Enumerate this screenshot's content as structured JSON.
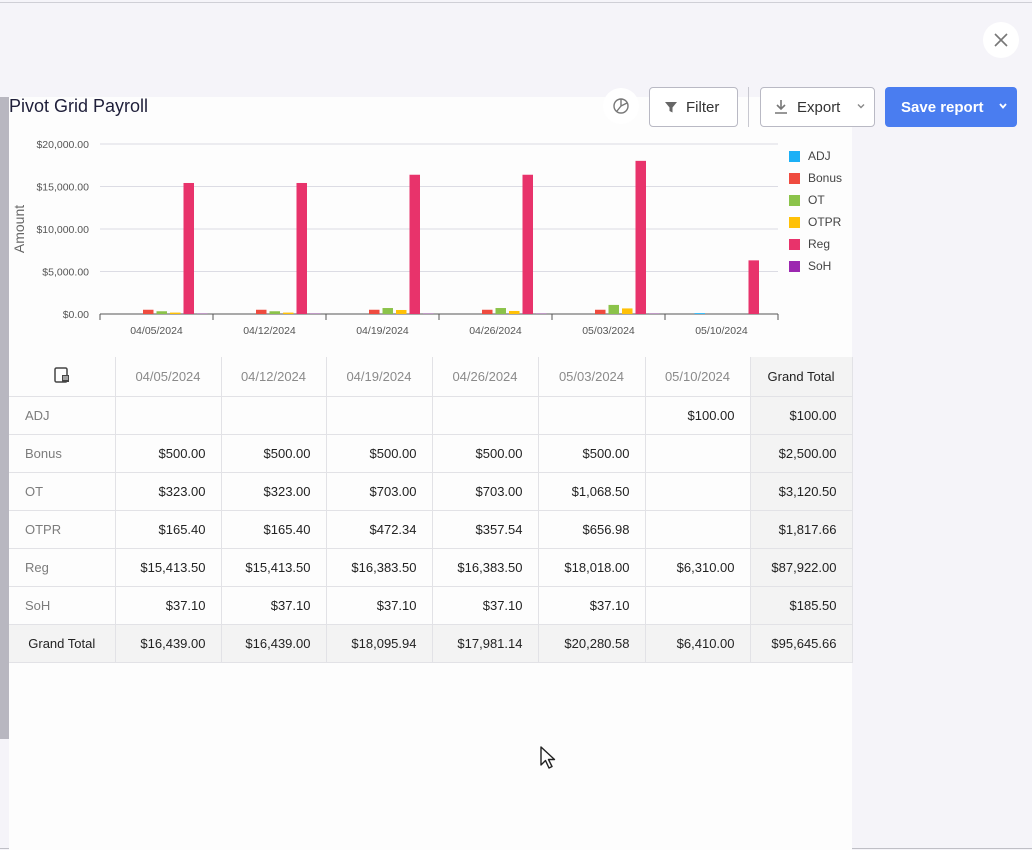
{
  "header": {
    "title": "Pivot Grid Payroll",
    "filter_label": "Filter",
    "export_label": "Export",
    "save_label": "Save report"
  },
  "colors": {
    "accent": "#4a7df0"
  },
  "chart_data": {
    "type": "bar",
    "categories": [
      "04/05/2024",
      "04/12/2024",
      "04/19/2024",
      "04/26/2024",
      "05/03/2024",
      "05/10/2024"
    ],
    "series": [
      {
        "name": "ADJ",
        "color": "#1cb0f6",
        "values": [
          0,
          0,
          0,
          0,
          0,
          100
        ]
      },
      {
        "name": "Bonus",
        "color": "#ef4b3f",
        "values": [
          500,
          500,
          500,
          500,
          500,
          0
        ]
      },
      {
        "name": "OT",
        "color": "#8bc34a",
        "values": [
          323,
          323,
          703,
          703,
          1068.5,
          0
        ]
      },
      {
        "name": "OTPR",
        "color": "#ffc107",
        "values": [
          165.4,
          165.4,
          472.34,
          357.54,
          656.98,
          0
        ]
      },
      {
        "name": "Reg",
        "color": "#e8336b",
        "values": [
          15413.5,
          15413.5,
          16383.5,
          16383.5,
          18018,
          6310
        ]
      },
      {
        "name": "SoH",
        "color": "#9c27b0",
        "values": [
          37.1,
          37.1,
          37.1,
          37.1,
          37.1,
          0
        ]
      }
    ],
    "ylabel": "Amount",
    "ylim": [
      0,
      20000
    ],
    "yticks": [
      "$0.00",
      "$5,000.00",
      "$10,000.00",
      "$15,000.00",
      "$20,000.00"
    ],
    "yticks_values": [
      0,
      5000,
      10000,
      15000,
      20000
    ],
    "legend_position": "right",
    "grid": true
  },
  "table": {
    "columns": [
      "04/05/2024",
      "04/12/2024",
      "04/19/2024",
      "04/26/2024",
      "05/03/2024",
      "05/10/2024",
      "Grand Total"
    ],
    "rows": [
      {
        "label": "ADJ",
        "cells": [
          "",
          "",
          "",
          "",
          "",
          "$100.00",
          "$100.00"
        ]
      },
      {
        "label": "Bonus",
        "cells": [
          "$500.00",
          "$500.00",
          "$500.00",
          "$500.00",
          "$500.00",
          "",
          "$2,500.00"
        ]
      },
      {
        "label": "OT",
        "cells": [
          "$323.00",
          "$323.00",
          "$703.00",
          "$703.00",
          "$1,068.50",
          "",
          "$3,120.50"
        ]
      },
      {
        "label": "OTPR",
        "cells": [
          "$165.40",
          "$165.40",
          "$472.34",
          "$357.54",
          "$656.98",
          "",
          "$1,817.66"
        ]
      },
      {
        "label": "Reg",
        "cells": [
          "$15,413.50",
          "$15,413.50",
          "$16,383.50",
          "$16,383.50",
          "$18,018.00",
          "$6,310.00",
          "$87,922.00"
        ]
      },
      {
        "label": "SoH",
        "cells": [
          "$37.10",
          "$37.10",
          "$37.10",
          "$37.10",
          "$37.10",
          "",
          "$185.50"
        ]
      },
      {
        "label": "Grand Total",
        "cells": [
          "$16,439.00",
          "$16,439.00",
          "$18,095.94",
          "$17,981.14",
          "$20,280.58",
          "$6,410.00",
          "$95,645.66"
        ]
      }
    ]
  }
}
